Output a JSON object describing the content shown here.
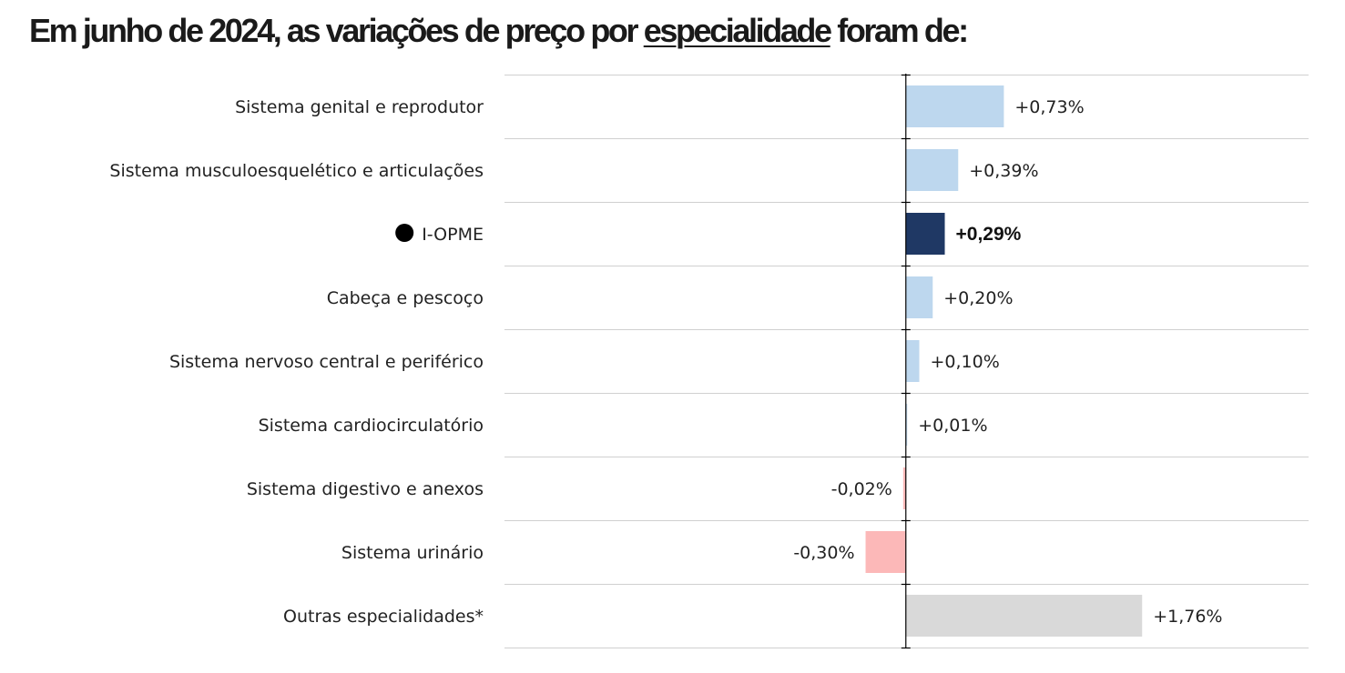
{
  "title": {
    "prefix": "Em junho de 2024, as variações de preço por ",
    "highlight": "especialidade",
    "suffix": " foram de:"
  },
  "colors": {
    "positive": "#bdd7ee",
    "negative": "#fcb8b8",
    "highlight": "#1f3864",
    "other": "#d9d9d9",
    "gridline": "#d0d0d0",
    "axis": "#000000"
  },
  "chart_data": {
    "type": "bar",
    "orientation": "horizontal",
    "title": "Em junho de 2024, as variações de preço por especialidade foram de:",
    "xlabel": "",
    "ylabel": "",
    "categories": [
      "Sistema genital e reprodutor",
      "Sistema musculoesquelético e articulações",
      "I-OPME",
      "Cabeça e pescoço",
      "Sistema nervoso central e periférico",
      "Sistema cardiocirculatório",
      "Sistema digestivo e anexos",
      "Sistema urinário",
      "Outras especialidades*"
    ],
    "values": [
      0.73,
      0.39,
      0.29,
      0.2,
      0.1,
      0.01,
      -0.02,
      -0.3,
      1.76
    ],
    "value_labels": [
      "+0,73%",
      "+0,39%",
      "+0,29%",
      "+0,20%",
      "+0,10%",
      "+0,01%",
      "-0,02%",
      "-0,30%",
      "+1,76%"
    ],
    "highlighted_category": "I-OPME",
    "highlight_marker": "black-dot",
    "other_category": "Outras especialidades*",
    "unit": "%",
    "xlim": [
      -2.99,
      3.0
    ],
    "grid": "horizontal row separators",
    "legend": "none"
  }
}
